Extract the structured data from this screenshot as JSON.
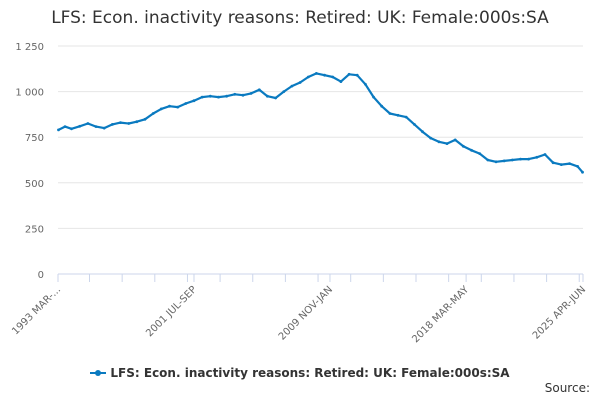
{
  "chart_data": {
    "type": "line",
    "title": "LFS: Econ. inactivity reasons: Retired: UK: Female:000s:SA",
    "xlabel": "",
    "ylabel": "",
    "ylim": [
      0,
      1250
    ],
    "yticks": [
      0,
      250,
      500,
      750,
      1000,
      1250
    ],
    "ytick_labels": [
      "0",
      "250",
      "500",
      "750",
      "1 000",
      "1 250"
    ],
    "x_range": [
      1993.17,
      2025.33
    ],
    "xtick_positions": [
      1993.17,
      2001.5,
      2009.83,
      2018.17,
      2025.33
    ],
    "xtick_labels": [
      "1993 MAR-...",
      "2001 JUL-SEP",
      "2009 NOV-JAN",
      "2018 MAR-MAY",
      "2025 APR-JUN"
    ],
    "series": [
      {
        "name": "LFS: Econ. inactivity reasons: Retired: UK: Female:000s:SA",
        "color": "#0a7ac0",
        "x": [
          1993.2,
          1993.6,
          1994.0,
          1994.5,
          1995.0,
          1995.5,
          1996.0,
          1996.5,
          1997.0,
          1997.5,
          1998.0,
          1998.5,
          1999.0,
          1999.5,
          2000.0,
          2000.5,
          2001.0,
          2001.5,
          2002.0,
          2002.5,
          2003.0,
          2003.5,
          2004.0,
          2004.5,
          2005.0,
          2005.5,
          2006.0,
          2006.5,
          2007.0,
          2007.5,
          2008.0,
          2008.5,
          2009.0,
          2009.5,
          2010.0,
          2010.5,
          2011.0,
          2011.5,
          2012.0,
          2012.5,
          2013.0,
          2013.5,
          2014.0,
          2014.5,
          2015.0,
          2015.5,
          2016.0,
          2016.5,
          2017.0,
          2017.5,
          2018.0,
          2018.5,
          2019.0,
          2019.5,
          2020.0,
          2020.5,
          2021.0,
          2021.5,
          2022.0,
          2022.5,
          2023.0,
          2023.5,
          2024.0,
          2024.5,
          2025.0,
          2025.3
        ],
        "values": [
          790,
          808,
          796,
          810,
          825,
          808,
          800,
          820,
          830,
          825,
          835,
          848,
          880,
          905,
          920,
          915,
          935,
          950,
          970,
          975,
          970,
          975,
          985,
          980,
          990,
          1010,
          975,
          965,
          1000,
          1030,
          1050,
          1080,
          1100,
          1090,
          1080,
          1055,
          1095,
          1090,
          1040,
          970,
          920,
          880,
          870,
          860,
          820,
          780,
          745,
          725,
          715,
          735,
          700,
          678,
          660,
          625,
          615,
          620,
          625,
          630,
          630,
          640,
          655,
          610,
          600,
          605,
          590,
          558
        ]
      }
    ],
    "legend": "LFS: Econ. inactivity reasons: Retired: UK: Female:000s:SA",
    "source_label": "Source:"
  }
}
